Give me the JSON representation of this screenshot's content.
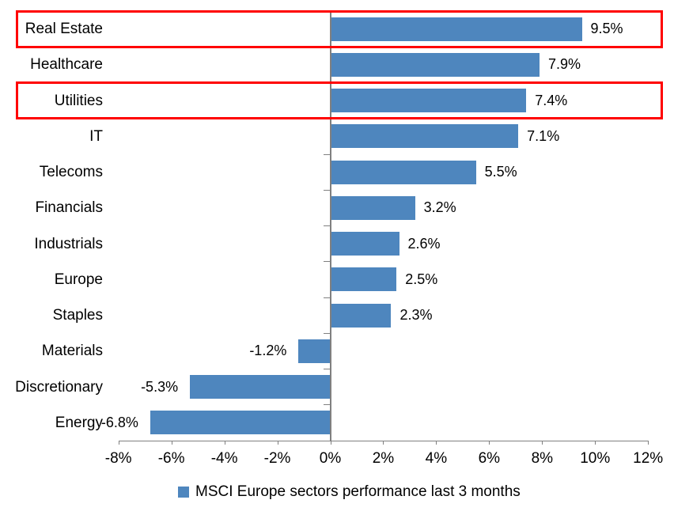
{
  "chart_data": {
    "type": "bar",
    "orientation": "horizontal",
    "title": "",
    "legend": "MSCI Europe sectors performance last 3 months",
    "legend_position": "bottom",
    "categories": [
      "Real Estate",
      "Healthcare",
      "Utilities",
      "IT",
      "Telecoms",
      "Financials",
      "Industrials",
      "Europe",
      "Staples",
      "Materials",
      "Discretionary",
      "Energy"
    ],
    "values": [
      9.5,
      7.9,
      7.4,
      7.1,
      5.5,
      3.2,
      2.6,
      2.5,
      2.3,
      -1.2,
      -5.3,
      -6.8
    ],
    "value_labels": [
      "9.5%",
      "7.9%",
      "7.4%",
      "7.1%",
      "5.5%",
      "3.2%",
      "2.6%",
      "2.5%",
      "2.3%",
      "-1.2%",
      "-5.3%",
      "-6.8%"
    ],
    "x_tick_labels": [
      "-8%",
      "-6%",
      "-4%",
      "-2%",
      "0%",
      "2%",
      "4%",
      "6%",
      "8%",
      "10%",
      "12%"
    ],
    "x_tick_values": [
      -8,
      -6,
      -4,
      -2,
      0,
      2,
      4,
      6,
      8,
      10,
      12
    ],
    "xlim": [
      -8,
      12
    ],
    "grid": "off",
    "bar_color": "#4E86BE",
    "axis_color": "#808080",
    "highlight_color": "#FF0000",
    "highlights": [
      {
        "category": "Real Estate",
        "row_index": 0
      },
      {
        "category": "Utilities",
        "row_index": 2
      }
    ]
  }
}
